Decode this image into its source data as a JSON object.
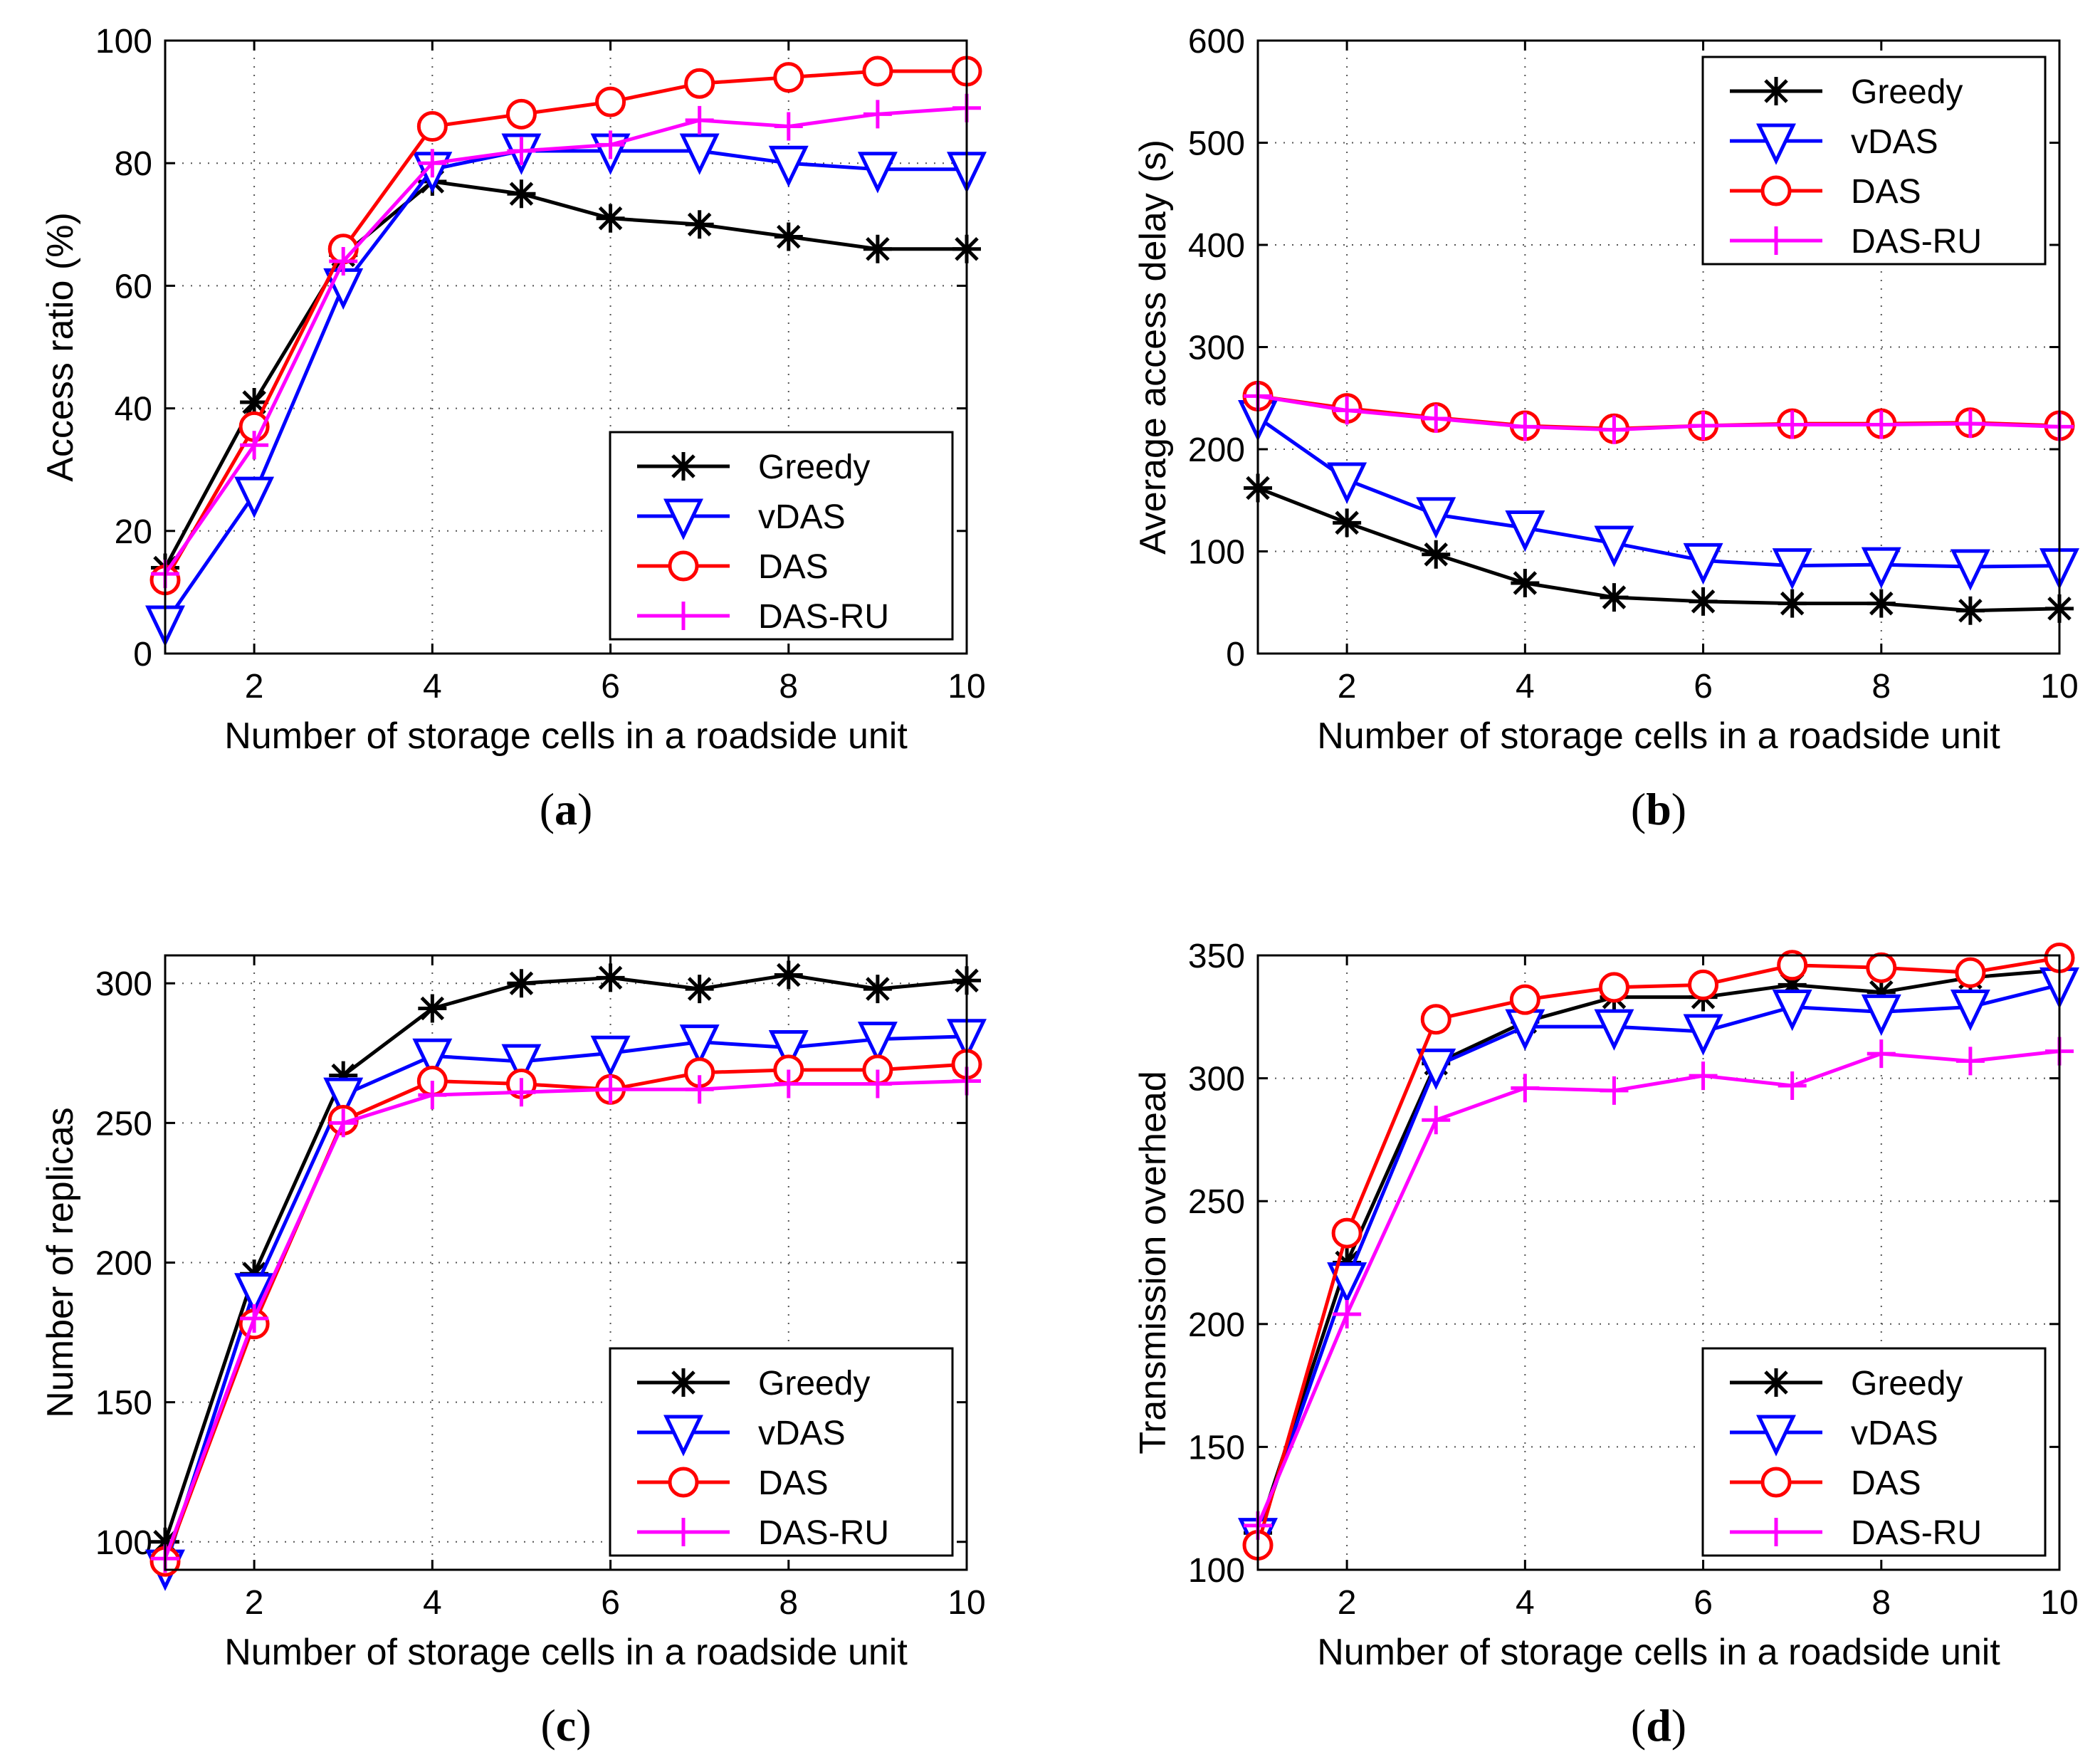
{
  "colors": {
    "Greedy": "#000000",
    "vDAS": "#0000ff",
    "DAS": "#ff0000",
    "DAS-RU": "#ff00ff"
  },
  "chart_data": [
    {
      "type": "line",
      "caption_letter": "a",
      "title": "",
      "xlabel": "Number of storage cells in a roadside unit",
      "ylabel": "Access ratio (%)",
      "xlim": [
        1,
        10
      ],
      "ylim": [
        0,
        100
      ],
      "xticks": [
        2,
        4,
        6,
        8,
        10
      ],
      "yticks": [
        0,
        20,
        40,
        60,
        80,
        100
      ],
      "grid": true,
      "legend_position": "bottom-right",
      "x": [
        1,
        2,
        3,
        4,
        5,
        6,
        7,
        8,
        9,
        10
      ],
      "series": [
        {
          "name": "Greedy",
          "marker": "star",
          "values": [
            14,
            41,
            65,
            77,
            75,
            71,
            70,
            68,
            66,
            66
          ]
        },
        {
          "name": "vDAS",
          "marker": "triangle-down",
          "values": [
            5,
            26,
            60,
            79,
            82,
            82,
            82,
            80,
            79,
            79
          ]
        },
        {
          "name": "DAS",
          "marker": "circle",
          "values": [
            12,
            37,
            66,
            86,
            88,
            90,
            93,
            94,
            95,
            95
          ]
        },
        {
          "name": "DAS-RU",
          "marker": "plus",
          "values": [
            13,
            34,
            64,
            80,
            82,
            83,
            87,
            86,
            88,
            89
          ]
        }
      ]
    },
    {
      "type": "line",
      "caption_letter": "b",
      "title": "",
      "xlabel": "Number of storage cells in a roadside unit",
      "ylabel": "Average access delay (s)",
      "xlim": [
        1,
        10
      ],
      "ylim": [
        0,
        600
      ],
      "xticks": [
        2,
        4,
        6,
        8,
        10
      ],
      "yticks": [
        0,
        100,
        200,
        300,
        400,
        500,
        600
      ],
      "grid": true,
      "legend_position": "top-right",
      "x": [
        1,
        2,
        3,
        4,
        5,
        6,
        7,
        8,
        9,
        10
      ],
      "series": [
        {
          "name": "Greedy",
          "marker": "star",
          "values": [
            162,
            128,
            97,
            69,
            55,
            51,
            49,
            49,
            42,
            44
          ]
        },
        {
          "name": "vDAS",
          "marker": "triangle-down",
          "values": [
            231,
            170,
            136,
            123,
            108,
            91,
            86,
            87,
            85,
            86
          ]
        },
        {
          "name": "DAS",
          "marker": "circle",
          "values": [
            252,
            240,
            231,
            223,
            220,
            223,
            225,
            225,
            226,
            223
          ]
        },
        {
          "name": "DAS-RU",
          "marker": "plus",
          "values": [
            252,
            238,
            230,
            222,
            219,
            223,
            224,
            224,
            225,
            222
          ]
        }
      ]
    },
    {
      "type": "line",
      "caption_letter": "c",
      "title": "",
      "xlabel": "Number of storage cells in a roadside unit",
      "ylabel": "Number of replicas",
      "xlim": [
        1,
        10
      ],
      "ylim": [
        90,
        310
      ],
      "xticks": [
        2,
        4,
        6,
        8,
        10
      ],
      "yticks": [
        100,
        150,
        200,
        250,
        300
      ],
      "grid": true,
      "legend_position": "bottom-right",
      "x": [
        1,
        2,
        3,
        4,
        5,
        6,
        7,
        8,
        9,
        10
      ],
      "series": [
        {
          "name": "Greedy",
          "marker": "star",
          "values": [
            100,
            196,
            267,
            291,
            300,
            302,
            298,
            303,
            298,
            301
          ]
        },
        {
          "name": "vDAS",
          "marker": "triangle-down",
          "values": [
            91,
            190,
            260,
            274,
            272,
            275,
            279,
            277,
            280,
            281
          ]
        },
        {
          "name": "DAS",
          "marker": "circle",
          "values": [
            93,
            178,
            251,
            265,
            264,
            262,
            268,
            269,
            269,
            271
          ]
        },
        {
          "name": "DAS-RU",
          "marker": "plus",
          "values": [
            94,
            180,
            250,
            260,
            261,
            262,
            262,
            264,
            264,
            265
          ]
        }
      ]
    },
    {
      "type": "line",
      "caption_letter": "d",
      "title": "",
      "xlabel": "Number of storage cells in a roadside unit",
      "ylabel": "Transmission overhead",
      "xlim": [
        1,
        10
      ],
      "ylim": [
        100,
        350
      ],
      "xticks": [
        2,
        4,
        6,
        8,
        10
      ],
      "yticks": [
        100,
        150,
        200,
        250,
        300,
        350
      ],
      "grid": true,
      "legend_position": "bottom-right",
      "x": [
        1,
        2,
        3,
        4,
        5,
        6,
        7,
        8,
        9,
        10
      ],
      "series": [
        {
          "name": "Greedy",
          "marker": "star",
          "values": [
            115,
            225,
            306,
            323,
            333,
            333,
            338,
            335,
            341,
            344
          ]
        },
        {
          "name": "vDAS",
          "marker": "triangle-down",
          "values": [
            114,
            218,
            305,
            321,
            321,
            319,
            329,
            327,
            329,
            338
          ]
        },
        {
          "name": "DAS",
          "marker": "circle",
          "values": [
            110,
            237,
            324,
            332,
            337,
            338,
            346,
            345,
            343,
            349
          ]
        },
        {
          "name": "DAS-RU",
          "marker": "plus",
          "values": [
            118,
            204,
            283,
            296,
            295,
            301,
            297,
            310,
            307,
            311
          ]
        }
      ]
    }
  ]
}
